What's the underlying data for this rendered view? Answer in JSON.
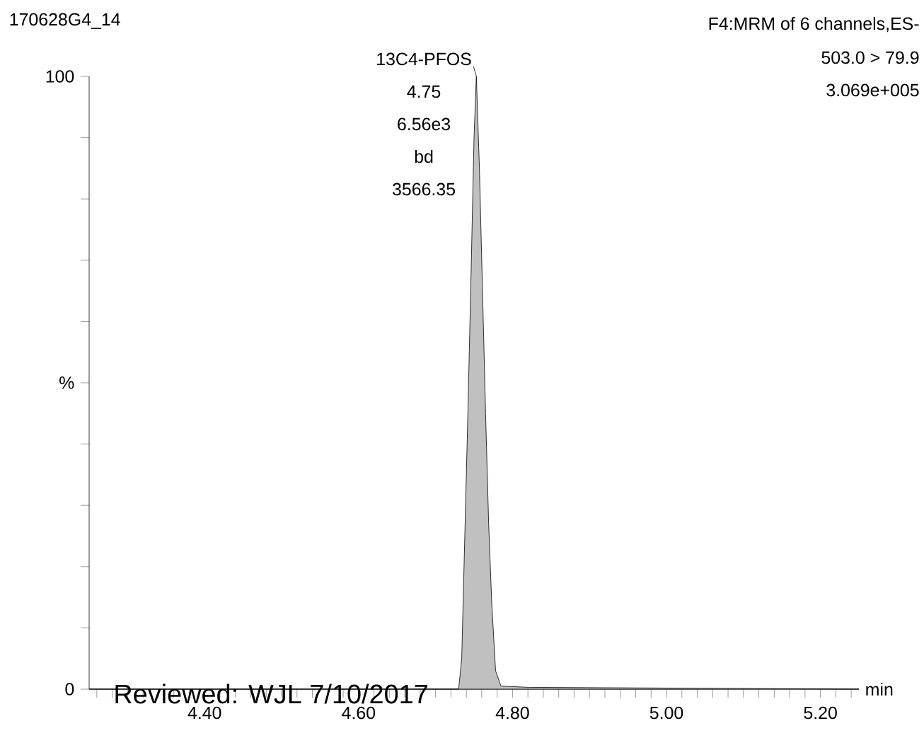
{
  "chart_data": {
    "type": "area",
    "title": "170628G4_14",
    "subtitle": "F4:MRM of 6 channels,ES-",
    "xlabel": "min",
    "annotations": [
      {
        "text": "13C4-PFOS",
        "x": 4.753,
        "y": 100
      },
      "4.75",
      "6.56e3",
      "bd",
      "3566.35",
      "503.0 > 79.9",
      "3.069e+005",
      "Reviewed: WJL 7/10/2017"
    ],
    "x": [
      4.25,
      4.73,
      4.734,
      4.738,
      4.742,
      4.746,
      4.75,
      4.753,
      4.757,
      4.761,
      4.765,
      4.769,
      4.773,
      4.778,
      4.785,
      4.82,
      5.25
    ],
    "values": [
      0,
      0,
      5,
      25,
      45,
      67,
      90,
      100,
      85,
      65,
      45,
      27,
      14,
      3,
      0.5,
      0.3,
      0
    ],
    "color": "#c0c0c0",
    "xlim": [
      4.25,
      5.25
    ],
    "ylim": [
      0,
      100
    ],
    "xticks": [
      {
        "value": 4.26,
        "label": null
      },
      {
        "value": 4.28,
        "label": null
      },
      {
        "value": 4.3,
        "label": null
      },
      {
        "value": 4.32,
        "label": null
      },
      {
        "value": 4.34,
        "label": null
      },
      {
        "value": 4.36,
        "label": null
      },
      {
        "value": 4.38,
        "label": null
      },
      {
        "value": 4.4,
        "label": "4.40"
      },
      {
        "value": 4.42,
        "label": null
      },
      {
        "value": 4.44,
        "label": null
      },
      {
        "value": 4.46,
        "label": null
      },
      {
        "value": 4.48,
        "label": null
      },
      {
        "value": 4.5,
        "label": null
      },
      {
        "value": 4.52,
        "label": null
      },
      {
        "value": 4.54,
        "label": null
      },
      {
        "value": 4.56,
        "label": null
      },
      {
        "value": 4.58,
        "label": null
      },
      {
        "value": 4.6,
        "label": "4.60"
      },
      {
        "value": 4.62,
        "label": null
      },
      {
        "value": 4.64,
        "label": null
      },
      {
        "value": 4.66,
        "label": null
      },
      {
        "value": 4.68,
        "label": null
      },
      {
        "value": 4.7,
        "label": null
      },
      {
        "value": 4.72,
        "label": null
      },
      {
        "value": 4.74,
        "label": null
      },
      {
        "value": 4.76,
        "label": null
      },
      {
        "value": 4.78,
        "label": null
      },
      {
        "value": 4.8,
        "label": "4.80"
      },
      {
        "value": 4.82,
        "label": null
      },
      {
        "value": 4.84,
        "label": null
      },
      {
        "value": 4.86,
        "label": null
      },
      {
        "value": 4.88,
        "label": null
      },
      {
        "value": 4.9,
        "label": null
      },
      {
        "value": 4.92,
        "label": null
      },
      {
        "value": 4.94,
        "label": null
      },
      {
        "value": 4.96,
        "label": null
      },
      {
        "value": 4.98,
        "label": null
      },
      {
        "value": 5.0,
        "label": "5.00"
      },
      {
        "value": 5.02,
        "label": null
      },
      {
        "value": 5.04,
        "label": null
      },
      {
        "value": 5.06,
        "label": null
      },
      {
        "value": 5.08,
        "label": null
      },
      {
        "value": 5.1,
        "label": null
      },
      {
        "value": 5.12,
        "label": null
      },
      {
        "value": 5.14,
        "label": null
      },
      {
        "value": 5.16,
        "label": null
      },
      {
        "value": 5.18,
        "label": null
      },
      {
        "value": 5.2,
        "label": "5.20"
      },
      {
        "value": 5.22,
        "label": null
      },
      {
        "value": 5.24,
        "label": null
      }
    ],
    "yticks": [
      0,
      {
        "value": 10,
        "label": null
      },
      {
        "value": 20,
        "label": null
      },
      {
        "value": 30,
        "label": null
      },
      {
        "value": 40,
        "label": null
      },
      {
        "value": 50,
        "label": "%"
      },
      {
        "value": 60,
        "label": null
      },
      {
        "value": 70,
        "label": null
      },
      {
        "value": 80,
        "label": null
      },
      {
        "value": 90,
        "label": null
      },
      100
    ]
  }
}
